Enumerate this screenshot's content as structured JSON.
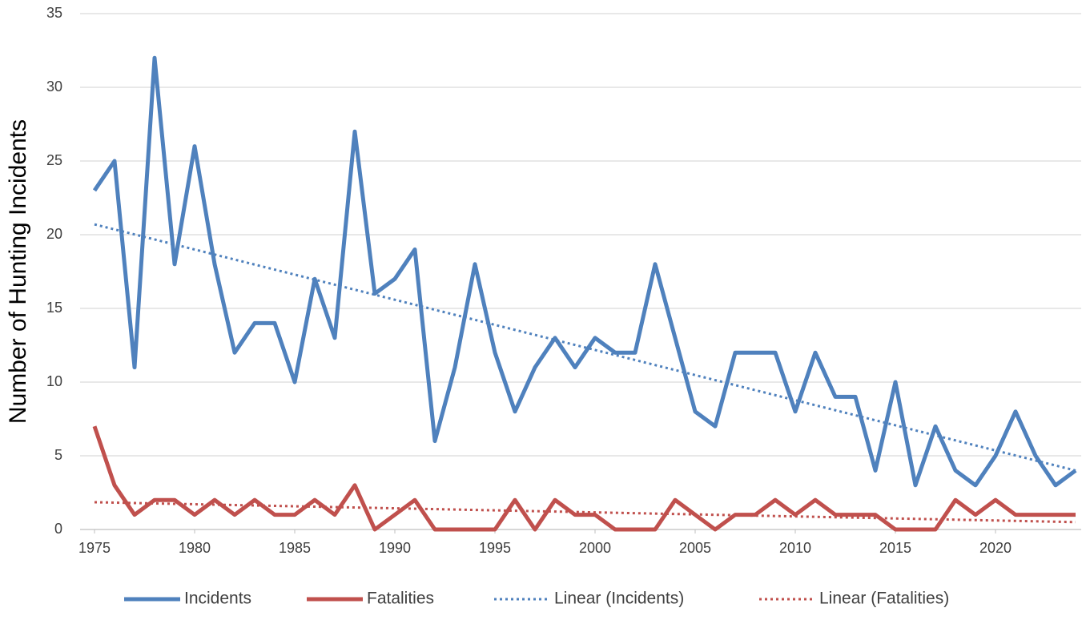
{
  "chart_data": {
    "type": "line",
    "ylabel": "Number of Hunting Incidents",
    "x": [
      1975,
      1976,
      1977,
      1978,
      1979,
      1980,
      1981,
      1982,
      1983,
      1984,
      1985,
      1986,
      1987,
      1988,
      1989,
      1990,
      1991,
      1992,
      1993,
      1994,
      1995,
      1996,
      1997,
      1998,
      1999,
      2000,
      2001,
      2002,
      2003,
      2004,
      2005,
      2006,
      2007,
      2008,
      2009,
      2010,
      2011,
      2012,
      2013,
      2014,
      2015,
      2016,
      2017,
      2018,
      2019,
      2020,
      2021,
      2022,
      2023,
      2024
    ],
    "series": [
      {
        "name": "Incidents",
        "color": "#4f81bd",
        "style": "solid",
        "values": [
          23,
          25,
          11,
          32,
          18,
          26,
          18,
          12,
          14,
          14,
          10,
          17,
          13,
          27,
          16,
          17,
          19,
          6,
          11,
          18,
          12,
          8,
          11,
          13,
          11,
          13,
          12,
          12,
          18,
          13,
          8,
          7,
          12,
          12,
          12,
          8,
          12,
          9,
          9,
          4,
          10,
          3,
          7,
          4,
          3,
          5,
          8,
          5,
          3,
          4
        ]
      },
      {
        "name": "Fatalities",
        "color": "#c0504d",
        "style": "solid",
        "values": [
          7,
          3,
          1,
          2,
          2,
          1,
          2,
          1,
          2,
          1,
          1,
          2,
          1,
          3,
          0,
          1,
          2,
          0,
          0,
          0,
          0,
          2,
          0,
          2,
          1,
          1,
          0,
          0,
          0,
          2,
          1,
          0,
          1,
          1,
          2,
          1,
          2,
          1,
          1,
          1,
          0,
          0,
          0,
          2,
          1,
          2,
          1,
          1,
          1,
          1
        ]
      },
      {
        "name": "Linear (Incidents)",
        "color": "#4f81bd",
        "style": "dotted",
        "x": [
          1975,
          2024
        ],
        "values": [
          20.7,
          4.0
        ]
      },
      {
        "name": "Linear (Fatalities)",
        "color": "#c0504d",
        "style": "dotted",
        "x": [
          1975,
          2024
        ],
        "values": [
          1.85,
          0.5
        ]
      }
    ],
    "xlim": [
      1974.28,
      2024.28
    ],
    "xticks": [
      1975,
      1980,
      1985,
      1990,
      1995,
      2000,
      2005,
      2010,
      2015,
      2020
    ],
    "ylim": [
      0,
      35
    ],
    "yticks": [
      0,
      5,
      10,
      15,
      20,
      25,
      30,
      35
    ],
    "grid": true,
    "legend": "bottom"
  }
}
